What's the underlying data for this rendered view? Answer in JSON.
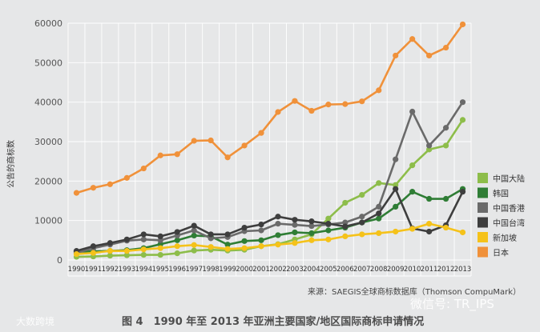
{
  "chart_data": {
    "type": "line",
    "ylabel": "公告的商标数",
    "ylim": [
      0,
      60000
    ],
    "yticks": [
      0,
      10000,
      20000,
      30000,
      40000,
      50000,
      60000
    ],
    "categories": [
      "1990",
      "1991",
      "1992",
      "1993",
      "1994",
      "1995",
      "1996",
      "1997",
      "1998",
      "1999",
      "2000",
      "2001",
      "2002",
      "2003",
      "2004",
      "2005",
      "2006",
      "2007",
      "2008",
      "2009",
      "2010",
      "2011",
      "2012",
      "2013"
    ],
    "grid": true,
    "legend_position": "right",
    "series": [
      {
        "name": "中国大陆",
        "color": "#8dbd4a",
        "values": [
          800,
          900,
          1100,
          1200,
          1300,
          1300,
          1700,
          2400,
          2600,
          2400,
          2600,
          3500,
          4000,
          5200,
          6500,
          10500,
          14500,
          16500,
          19500,
          19000,
          24000,
          28000,
          29000,
          35500
        ]
      },
      {
        "name": "韩国",
        "color": "#2f7d35",
        "values": [
          2100,
          2200,
          2300,
          2500,
          3000,
          4000,
          5000,
          6200,
          6000,
          3900,
          4800,
          5000,
          6300,
          7000,
          6800,
          7500,
          8200,
          9500,
          10500,
          13500,
          17300,
          15500,
          15500,
          18000
        ]
      },
      {
        "name": "中国香港",
        "color": "#6a6a6a",
        "values": [
          1800,
          3000,
          3900,
          4900,
          5200,
          5000,
          6200,
          7500,
          5500,
          5800,
          7300,
          7500,
          9200,
          8900,
          8600,
          9000,
          9500,
          11000,
          13500,
          25500,
          37600,
          29000,
          33500,
          40000
        ]
      },
      {
        "name": "中国台湾",
        "color": "#3e3e3e",
        "values": [
          2300,
          3500,
          4300,
          5200,
          6500,
          6000,
          7100,
          8700,
          6500,
          6500,
          8200,
          9000,
          11000,
          10200,
          9800,
          9200,
          8500,
          9500,
          11800,
          18000,
          8000,
          7200,
          8800,
          17300
        ]
      },
      {
        "name": "新加坡",
        "color": "#f5c21a",
        "values": [
          1500,
          1800,
          2300,
          2300,
          2700,
          3000,
          3500,
          3800,
          3300,
          2800,
          3000,
          3500,
          3900,
          4300,
          5000,
          5200,
          6000,
          6500,
          6800,
          7200,
          7900,
          9200,
          8200,
          7000
        ]
      },
      {
        "name": "日本",
        "color": "#f0913a",
        "values": [
          17000,
          18300,
          19200,
          20800,
          23200,
          26500,
          26800,
          30200,
          30300,
          26000,
          29000,
          32200,
          37500,
          40300,
          37800,
          39400,
          39500,
          40200,
          43000,
          51800,
          56000,
          51800,
          53800,
          59700
        ]
      }
    ]
  },
  "source": "来源：SAEGIS全球商标数据库（Thomson CompuMark）",
  "caption": "图 4　1990 年至 2013 年亚洲主要国家/地区国际商标申请情况",
  "watermark_left": "大数跨境",
  "watermark_right": "微信号: TR_IPS"
}
